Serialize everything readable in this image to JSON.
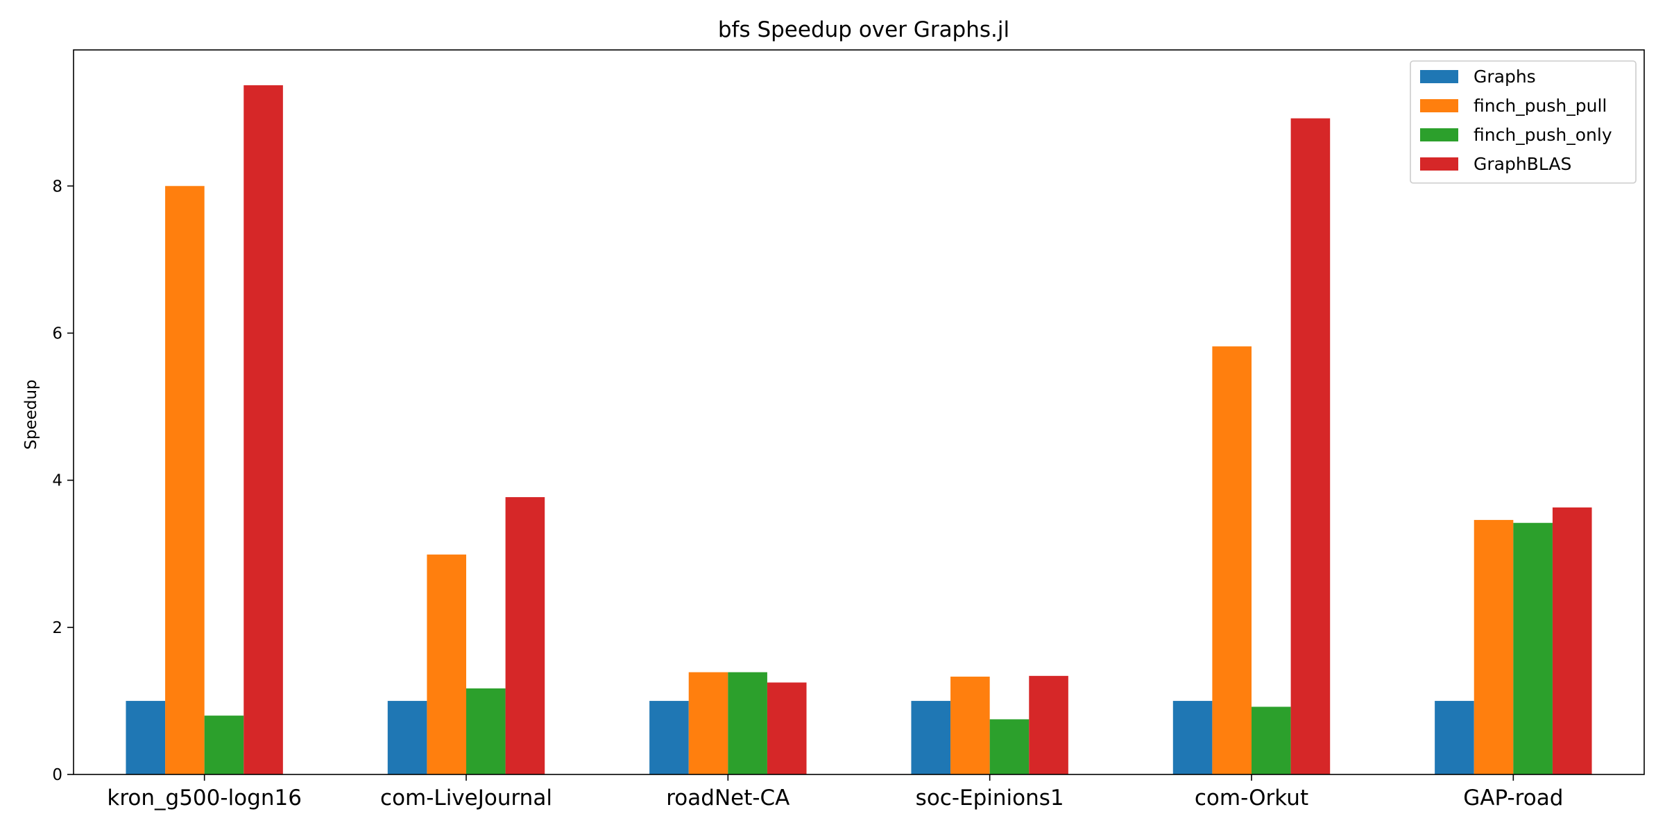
{
  "chart_data": {
    "type": "bar",
    "title": "bfs Speedup over Graphs.jl",
    "xlabel": "",
    "ylabel": "Speedup",
    "ylim": [
      0,
      9.85
    ],
    "yticks": [
      0,
      2,
      4,
      6,
      8
    ],
    "grid": false,
    "legend_position": "top-right",
    "categories": [
      "kron_g500-logn16",
      "com-LiveJournal",
      "roadNet-CA",
      "soc-Epinions1",
      "com-Orkut",
      "GAP-road"
    ],
    "series": [
      {
        "name": "Graphs",
        "color": "#1f77b4",
        "values": [
          1.0,
          1.0,
          1.0,
          1.0,
          1.0,
          1.0
        ]
      },
      {
        "name": "finch_push_pull",
        "color": "#ff7f0e",
        "values": [
          8.0,
          2.99,
          1.39,
          1.33,
          5.82,
          3.46
        ]
      },
      {
        "name": "finch_push_only",
        "color": "#2ca02c",
        "values": [
          0.8,
          1.17,
          1.39,
          0.75,
          0.92,
          3.42
        ]
      },
      {
        "name": "GraphBLAS",
        "color": "#d62728",
        "values": [
          9.37,
          3.77,
          1.25,
          1.34,
          8.92,
          3.63
        ]
      }
    ]
  }
}
